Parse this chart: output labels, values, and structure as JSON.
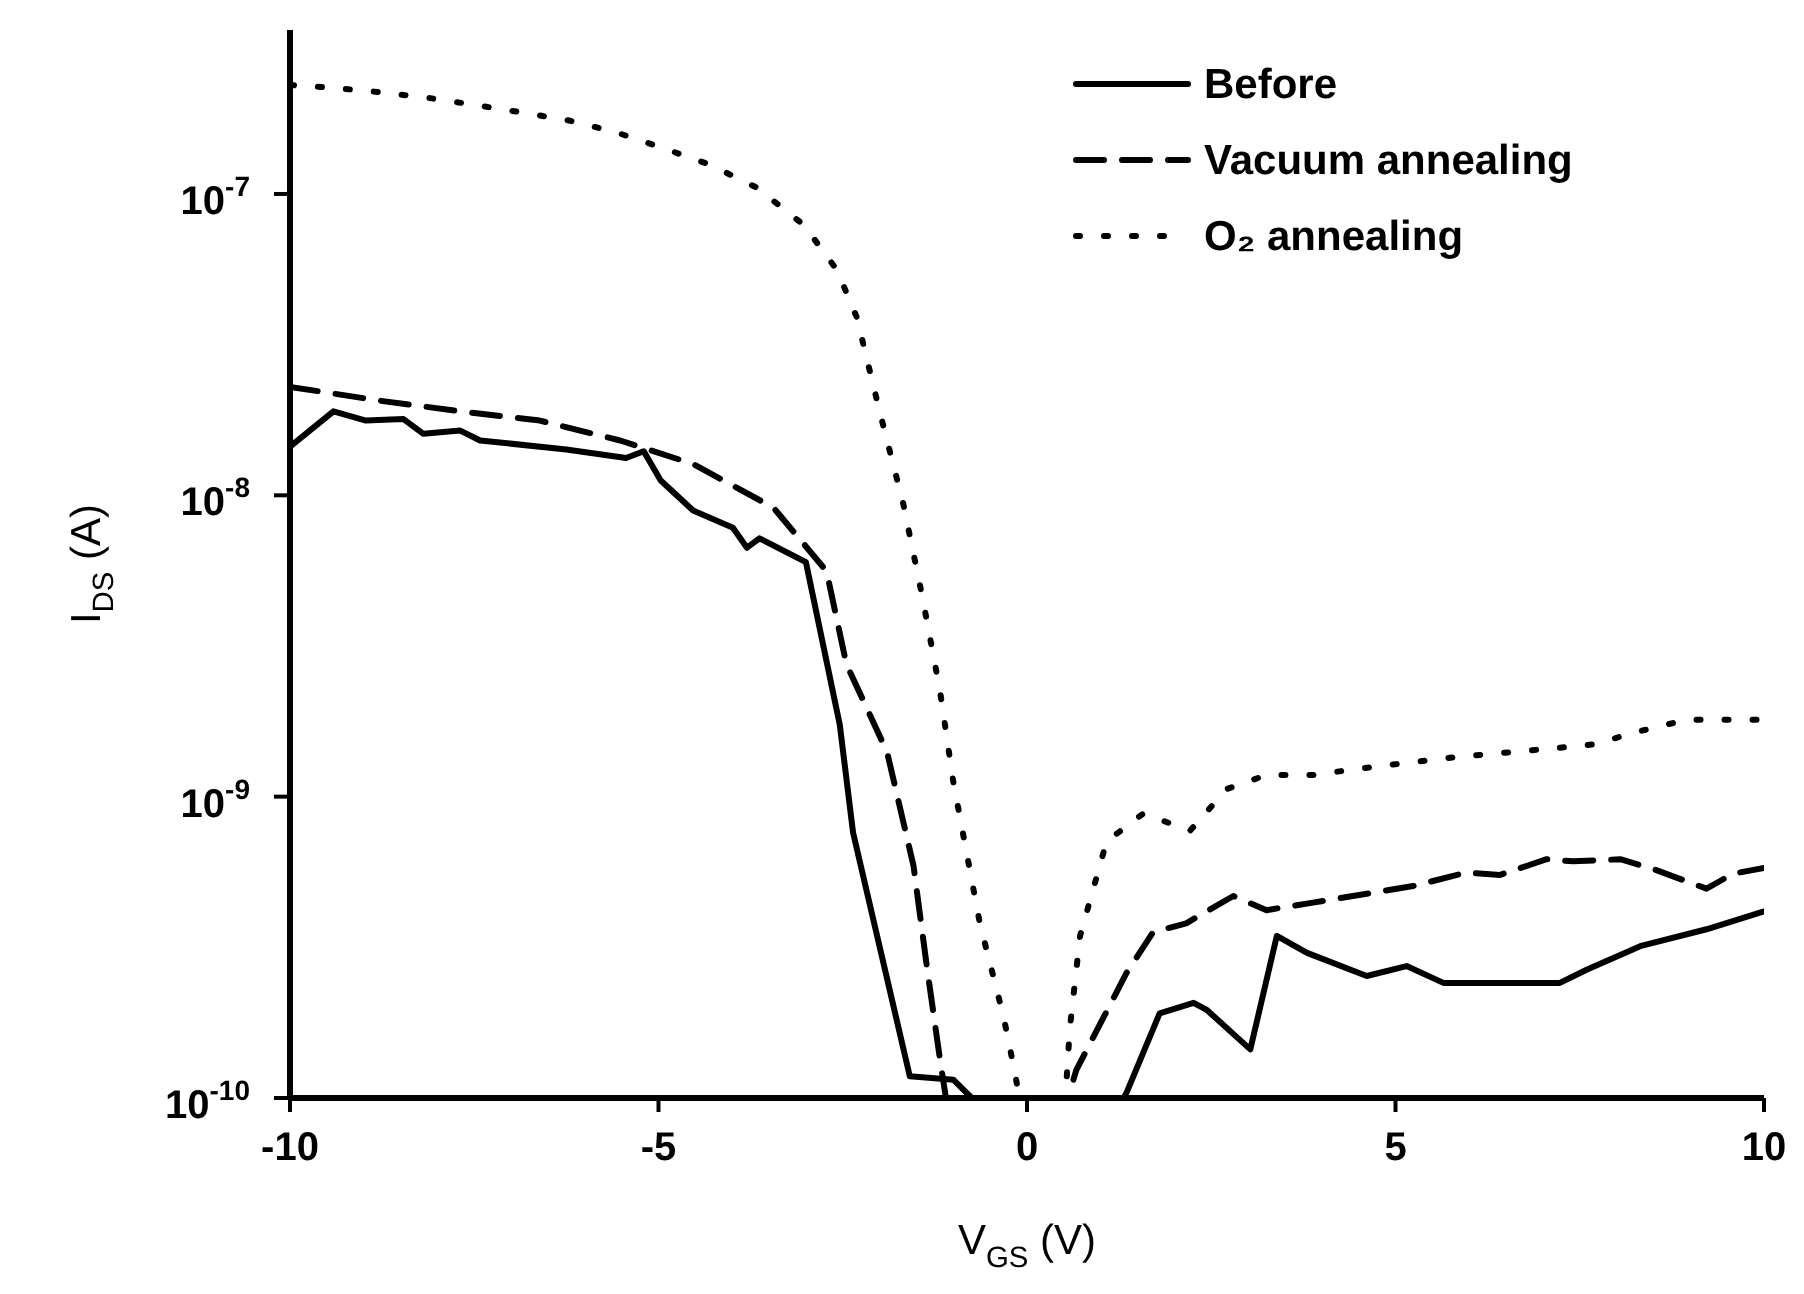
{
  "chart_data": {
    "type": "line",
    "xlabel": "V$_{GS}$ (V)",
    "ylabel": "I$_{DS}$ (A)",
    "log": "y",
    "xlim": [
      -10,
      10
    ],
    "xticks": [
      -10,
      -5,
      0,
      5,
      10
    ],
    "ylim": [
      1e-10,
      3.5e-07
    ],
    "yticks": [
      {
        "value": 1e-10,
        "label": "10$^{-10}$"
      },
      {
        "value": 1e-09,
        "label": "10$^{-9}$"
      },
      {
        "value": 1e-08,
        "label": "10$^{-8}$"
      },
      {
        "value": 1e-07,
        "label": "10$^{-7}$"
      }
    ],
    "grid": false,
    "legend": "top right",
    "marker": "none",
    "series": [
      {
        "name": "Before",
        "color": "#000000",
        "line_style": "solid",
        "x": [
          -10,
          -9.41,
          -8.97,
          -8.46,
          -8.19,
          -7.69,
          -7.42,
          -6.25,
          -5.44,
          -5.2,
          -4.97,
          -4.53,
          -3.99,
          -3.8,
          -3.63,
          -3.0,
          -2.54,
          -2.36,
          -1.59,
          -1.0,
          -0.75,
          0,
          1.31,
          1.35,
          1.8,
          2.26,
          2.44,
          3.03,
          3.39,
          3.8,
          4.61,
          5.15,
          5.65,
          7.23,
          7.6,
          8.32,
          9.22,
          10
        ],
        "values": [
          1.45e-08,
          1.9e-08,
          1.77e-08,
          1.79e-08,
          1.6e-08,
          1.64e-08,
          1.52e-08,
          1.42e-08,
          1.33e-08,
          1.4e-08,
          1.12e-08,
          8.9e-09,
          7.8e-09,
          6.7e-09,
          7.2e-09,
          6e-09,
          1.73e-09,
          7.6e-10,
          1.18e-10,
          1.15e-10,
          1e-10,
          null,
          1e-10,
          1.04e-10,
          1.91e-10,
          2.07e-10,
          1.96e-10,
          1.45e-10,
          3.45e-10,
          3.03e-10,
          2.54e-10,
          2.74e-10,
          2.41e-10,
          2.41e-10,
          2.67e-10,
          3.19e-10,
          3.63e-10,
          4.16e-10
        ]
      },
      {
        "name": "Vacuum annealing",
        "color": "#000000",
        "line_style": "dashed",
        "x": [
          -10,
          -8.78,
          -7.69,
          -6.61,
          -5.52,
          -4.53,
          -3.44,
          -2.72,
          -2.45,
          -1.9,
          -1.54,
          -1.36,
          -1.18,
          -1.1,
          0,
          0.63,
          0.67,
          1.35,
          1.71,
          2.16,
          2.8,
          3.25,
          3.88,
          5.24,
          5.96,
          6.42,
          7.05,
          7.41,
          8.05,
          8.5,
          9.22,
          9.58,
          10
        ],
        "values": [
          2.29e-08,
          2.06e-08,
          1.9e-08,
          1.77e-08,
          1.52e-08,
          1.27e-08,
          9.1e-09,
          5.6e-09,
          2.75e-09,
          1.41e-09,
          5.9e-10,
          2.74e-10,
          1.34e-10,
          1e-10,
          null,
          1.15e-10,
          1.24e-10,
          2.6e-10,
          3.55e-10,
          3.8e-10,
          4.68e-10,
          4.2e-10,
          4.45e-10,
          5.05e-10,
          5.6e-10,
          5.5e-10,
          6.2e-10,
          6.1e-10,
          6.2e-10,
          5.75e-10,
          4.95e-10,
          5.55e-10,
          5.8e-10
        ]
      },
      {
        "name": "O₂ annealing",
        "color": "#000000",
        "line_style": "dotted",
        "x": [
          -10,
          -9.41,
          -8.73,
          -8.1,
          -7.47,
          -6.83,
          -6.2,
          -5.57,
          -4.94,
          -4.3,
          -3.67,
          -3.03,
          -2.58,
          -2.31,
          -2.0,
          -1.68,
          -1.42,
          -1.18,
          -1.0,
          -0.64,
          -0.32,
          -0.2,
          -0.1,
          0.3,
          0.54,
          0.58,
          0.72,
          1.08,
          1.58,
          2.21,
          2.71,
          3.25,
          3.88,
          4.52,
          5.78,
          7.05,
          7.68,
          8.32,
          8.95,
          9.58,
          10
        ],
        "values": [
          2.3e-07,
          2.25e-07,
          2.17e-07,
          2.08e-07,
          1.97e-07,
          1.86e-07,
          1.75e-07,
          1.6e-07,
          1.42e-07,
          1.25e-07,
          1.05e-07,
          7.9e-08,
          5.6e-08,
          3.9e-08,
          1.9e-08,
          9.4e-09,
          4.6e-09,
          2.24e-09,
          1.12e-09,
          3.8e-10,
          1.87e-10,
          1.34e-10,
          1e-10,
          null,
          1.18e-10,
          1.69e-10,
          3.45e-10,
          7.1e-10,
          8.8e-10,
          7.7e-10,
          1.06e-09,
          1.18e-09,
          1.18e-09,
          1.24e-09,
          1.35e-09,
          1.44e-09,
          1.49e-09,
          1.65e-09,
          1.8e-09,
          1.8e-09,
          1.8e-09
        ]
      }
    ]
  }
}
